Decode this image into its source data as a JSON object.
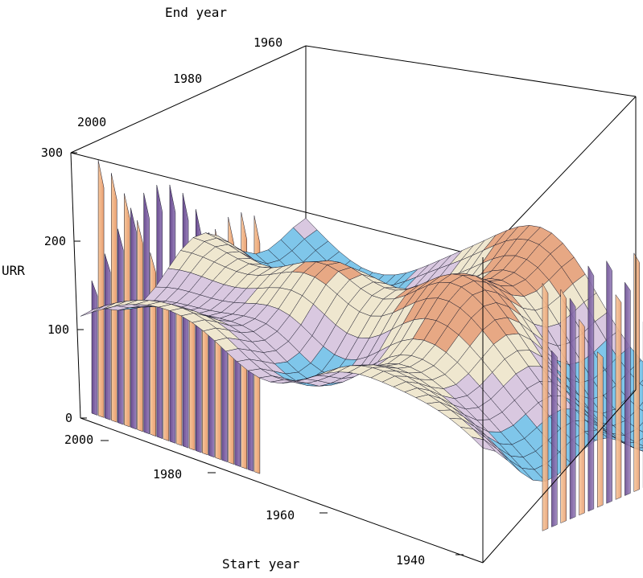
{
  "chart_data": {
    "type": "surface3d",
    "title": "",
    "axes": {
      "end_year": {
        "label": "End year",
        "ticks": [
          1960,
          1980,
          2000
        ]
      },
      "start_year": {
        "label": "Start year",
        "ticks": [
          2000,
          1980,
          1960,
          1940
        ]
      },
      "urr": {
        "label": "URR",
        "ticks": [
          0,
          100,
          200,
          300
        ],
        "range": [
          0,
          300
        ]
      }
    },
    "colors": {
      "peak": "#c0503a",
      "mid": "#d9c8e0",
      "plateau": "#7fc6ea",
      "wall_dark": "#7a5c9c",
      "wall_light": "#f4b98c",
      "mesh": "#1a1a2a"
    }
  }
}
